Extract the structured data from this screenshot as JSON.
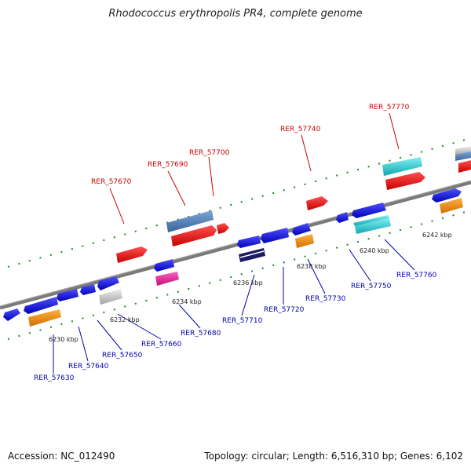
{
  "title": "Rhodococcus erythropolis PR4, complete genome",
  "accession": "Accession: NC_012490",
  "topology": "Topology: circular; Length: 6,516,310 bp; Genes: 6,102",
  "top_labels": [
    "RER_57670",
    "RER_57690",
    "RER_57700",
    "RER_57740",
    "RER_57770"
  ],
  "bottom_labels": [
    "RER_57630",
    "RER_57640",
    "RER_57650",
    "RER_57660",
    "RER_57680",
    "RER_57710",
    "RER_57720",
    "RER_57730",
    "RER_57750",
    "RER_57760"
  ],
  "ticks": [
    "6230 kbp",
    "6232 kbp",
    "6234 kbp",
    "6236 kbp",
    "6238 kbp",
    "6240 kbp",
    "6242 kbp"
  ],
  "colors": {
    "red": "#e8000a",
    "blue": "#1a1adf",
    "steel": "#4a78b0",
    "cyan": "#20c8d0",
    "orange": "#f08a00",
    "pink": "#e0209a",
    "grey": "#c8c8c8",
    "navy": "#1a1a66",
    "track": "#808080",
    "dots": "#228822"
  }
}
